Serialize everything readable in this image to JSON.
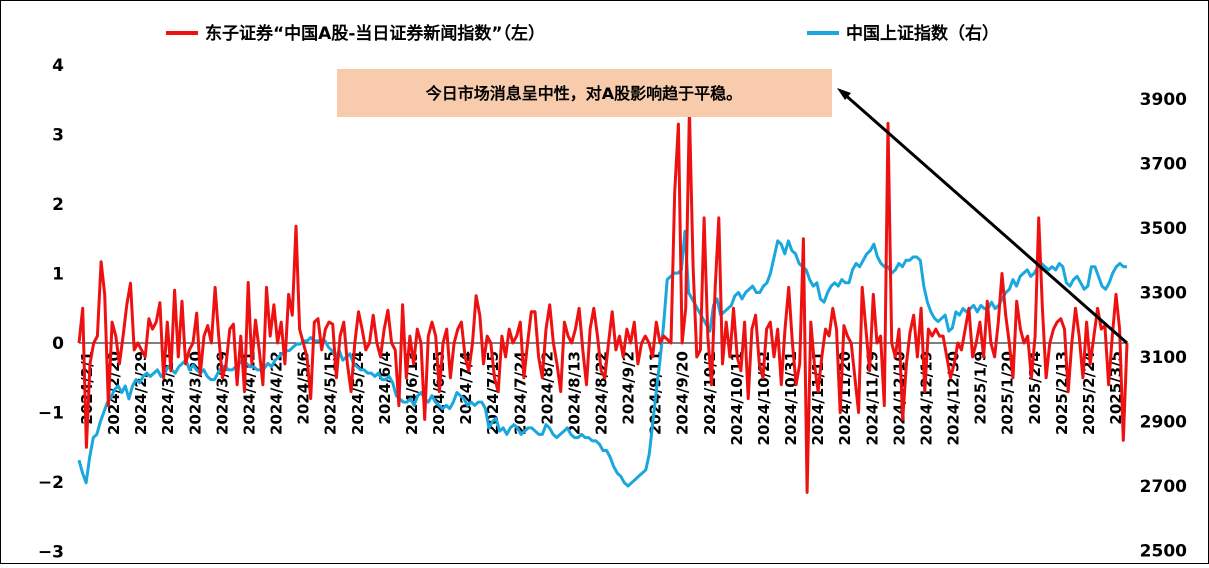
{
  "colors": {
    "series_red": "#ee1111",
    "series_blue": "#1aa7dd",
    "annotation_bg": "#f8cbad",
    "arrow": "#000000"
  },
  "chart_data": {
    "type": "line",
    "grid": false,
    "legend_position": "top",
    "y_left": {
      "ticks": [
        4,
        3,
        2,
        1,
        0,
        -1,
        -2,
        -3
      ],
      "tick_labels": [
        "4",
        "3",
        "2",
        "1",
        "0",
        "−1",
        "−2",
        "−3"
      ],
      "range": [
        -3,
        4
      ]
    },
    "y_right": {
      "ticks": [
        3900,
        3700,
        3500,
        3300,
        3100,
        2900,
        2700,
        2500
      ],
      "range": [
        2500,
        3950
      ]
    },
    "x_start": "2024/2/1",
    "x_end": "2025/3/10",
    "x_tick_labels": [
      "2024/2/1",
      "2024/2/20",
      "2024/2/29",
      "2024/3/11",
      "2024/3/20",
      "2024/3/29",
      "2024/4/11",
      "2024/4/22",
      "2024/5/6",
      "2024/5/15",
      "2024/5/24",
      "2024/6/4",
      "2024/6/13",
      "2024/6/25",
      "2024/7/4",
      "2024/7/15",
      "2024/7/24",
      "2024/8/2",
      "2024/8/13",
      "2024/8/22",
      "2024/9/2",
      "2024/9/11",
      "2024/9/20",
      "2024/10/2",
      "2024/10/11",
      "2024/10/22",
      "2024/10/31",
      "2024/11/11",
      "2024/11/20",
      "2024/11/29",
      "2024/12/10",
      "2024/12/19",
      "2024/12/30",
      "2025/1/9",
      "2025/1/20",
      "2025/2/4",
      "2025/2/13",
      "2025/2/24",
      "2025/3/5"
    ],
    "series": [
      {
        "name": "东子证券“中国A股-当日证券新闻指数”（左）",
        "axis": "left",
        "values": [
          0.0,
          0.5,
          -1.5,
          -0.3,
          0.0,
          0.1,
          1.17,
          0.7,
          -0.9,
          0.3,
          0.1,
          -0.3,
          0.1,
          0.55,
          0.86,
          -0.1,
          0.0,
          -0.1,
          -0.2,
          0.35,
          0.2,
          0.3,
          0.58,
          -0.5,
          0.3,
          -0.4,
          0.76,
          -0.2,
          0.6,
          -0.3,
          -0.1,
          0.0,
          0.43,
          -0.45,
          0.1,
          0.25,
          0.0,
          0.8,
          0.1,
          -0.5,
          -0.3,
          0.2,
          0.27,
          -0.6,
          0.1,
          -0.7,
          0.87,
          -0.3,
          0.33,
          -0.1,
          -0.6,
          0.8,
          0.1,
          0.55,
          0.0,
          0.3,
          -0.3,
          0.7,
          0.4,
          1.68,
          0.2,
          0.0,
          -0.2,
          -0.8,
          0.3,
          0.35,
          -0.1,
          0.2,
          0.3,
          0.27,
          -0.5,
          0.1,
          0.3,
          -0.3,
          -0.7,
          0.0,
          0.45,
          0.2,
          -0.1,
          0.0,
          0.4,
          0.0,
          -0.2,
          0.2,
          0.47,
          0.0,
          -0.1,
          -0.9,
          0.55,
          -0.5,
          0.1,
          -0.3,
          0.2,
          0.0,
          -1.1,
          0.1,
          0.3,
          0.1,
          -0.7,
          0.0,
          0.2,
          -0.5,
          0.0,
          0.2,
          0.3,
          -0.2,
          -0.4,
          0.0,
          0.68,
          0.4,
          -0.3,
          0.1,
          0.0,
          -0.5,
          -0.7,
          0.1,
          -0.2,
          0.2,
          0.0,
          0.1,
          0.3,
          -0.5,
          0.0,
          0.45,
          0.45,
          -0.2,
          -0.5,
          0.2,
          0.55,
          0.0,
          -0.3,
          -0.7,
          0.3,
          0.1,
          0.0,
          0.2,
          0.5,
          -0.1,
          -0.6,
          0.2,
          0.5,
          0.1,
          -0.4,
          -0.5,
          0.0,
          0.45,
          -0.1,
          0.1,
          -0.2,
          0.2,
          0.0,
          0.3,
          -0.3,
          0.0,
          0.1,
          0.0,
          -0.2,
          0.3,
          0.0,
          0.1,
          0.05,
          0.0,
          2.17,
          3.15,
          0.0,
          0.5,
          3.35,
          1.1,
          -0.2,
          -0.1,
          1.8,
          0.1,
          -0.6,
          0.8,
          1.8,
          -0.3,
          0.3,
          -0.2,
          0.5,
          -0.2,
          -0.4,
          0.3,
          -0.8,
          0.2,
          0.4,
          -0.3,
          -0.5,
          0.2,
          0.3,
          -0.2,
          0.2,
          -0.6,
          0.2,
          0.8,
          0.0,
          -0.6,
          -0.3,
          1.5,
          -2.15,
          0.3,
          -0.3,
          -0.7,
          -0.2,
          0.2,
          0.1,
          0.5,
          0.2,
          -1.0,
          0.25,
          0.1,
          0.0,
          -0.5,
          -1.0,
          0.8,
          0.2,
          -0.4,
          0.7,
          0.0,
          0.1,
          -0.9,
          3.16,
          0.0,
          -0.2,
          0.2,
          -1.1,
          -0.3,
          0.15,
          0.4,
          -0.2,
          0.5,
          -0.7,
          0.2,
          0.1,
          0.2,
          0.1,
          0.1,
          -0.2,
          -0.5,
          -0.3,
          0.0,
          -0.1,
          0.2,
          0.5,
          -0.2,
          0.0,
          0.3,
          -0.2,
          0.6,
          0.0,
          -0.2,
          0.3,
          1.0,
          0.4,
          0.0,
          -0.5,
          0.6,
          0.2,
          0.0,
          0.1,
          -0.5,
          0.1,
          1.8,
          0.5,
          -0.5,
          0.0,
          0.2,
          0.3,
          0.35,
          0.2,
          -0.7,
          0.0,
          0.5,
          0.1,
          -0.5,
          0.3,
          -0.3,
          0.1,
          0.5,
          0.2,
          0.25,
          -0.6,
          0.1,
          0.7,
          0.2,
          -1.4,
          0.0
        ]
      },
      {
        "name": "中国上证指数（右）",
        "axis": "right",
        "values": [
          2780,
          2740,
          2710,
          2790,
          2850,
          2860,
          2900,
          2930,
          2960,
          2975,
          3000,
          3010,
          2990,
          3010,
          2970,
          3010,
          3030,
          3020,
          3040,
          3050,
          3040,
          3050,
          3060,
          3040,
          3050,
          3070,
          3060,
          3050,
          3070,
          3080,
          3090,
          3060,
          3075,
          3060,
          3050,
          3060,
          3040,
          3030,
          3030,
          3050,
          3070,
          3070,
          3060,
          3060,
          3070,
          3080,
          3090,
          3080,
          3070,
          3070,
          3060,
          3060,
          3065,
          3080,
          3070,
          3090,
          3100,
          3110,
          3120,
          3120,
          3130,
          3140,
          3140,
          3150,
          3150,
          3160,
          3150,
          3150,
          3150,
          3150,
          3130,
          3120,
          3100,
          3120,
          3090,
          3100,
          3110,
          3080,
          3070,
          3060,
          3060,
          3050,
          3050,
          3040,
          3050,
          3030,
          3030,
          3040,
          3020,
          2980,
          2970,
          2960,
          2960,
          2970,
          2950,
          2980,
          2990,
          2970,
          2960,
          2980,
          2960,
          2950,
          2940,
          2950,
          2940,
          2960,
          2990,
          2980,
          2970,
          2950,
          2960,
          2950,
          2960,
          2960,
          2940,
          2880,
          2900,
          2910,
          2870,
          2880,
          2860,
          2880,
          2890,
          2880,
          2860,
          2870,
          2880,
          2880,
          2870,
          2860,
          2860,
          2890,
          2880,
          2860,
          2850,
          2860,
          2870,
          2880,
          2860,
          2850,
          2850,
          2860,
          2850,
          2850,
          2840,
          2840,
          2830,
          2810,
          2810,
          2790,
          2760,
          2740,
          2730,
          2710,
          2700,
          2710,
          2720,
          2730,
          2740,
          2750,
          2800,
          2900,
          3000,
          3090,
          3200,
          3340,
          3350,
          3360,
          3360,
          3370,
          3490,
          3300,
          3280,
          3260,
          3240,
          3220,
          3200,
          3180,
          3260,
          3280,
          3230,
          3240,
          3250,
          3260,
          3290,
          3300,
          3280,
          3300,
          3310,
          3320,
          3300,
          3300,
          3320,
          3330,
          3360,
          3410,
          3460,
          3450,
          3420,
          3460,
          3430,
          3420,
          3390,
          3380,
          3370,
          3340,
          3320,
          3330,
          3280,
          3270,
          3300,
          3320,
          3330,
          3320,
          3340,
          3330,
          3330,
          3370,
          3390,
          3380,
          3400,
          3420,
          3430,
          3450,
          3410,
          3390,
          3380,
          3380,
          3360,
          3370,
          3390,
          3380,
          3400,
          3400,
          3410,
          3410,
          3400,
          3320,
          3270,
          3240,
          3220,
          3210,
          3220,
          3230,
          3180,
          3190,
          3240,
          3230,
          3250,
          3240,
          3250,
          3260,
          3240,
          3260,
          3250,
          3250,
          3270,
          3250,
          3260,
          3280,
          3300,
          3310,
          3340,
          3320,
          3350,
          3360,
          3370,
          3350,
          3360,
          3380,
          3390,
          3380,
          3370,
          3380,
          3370,
          3390,
          3380,
          3330,
          3320,
          3340,
          3350,
          3330,
          3310,
          3320,
          3380,
          3380,
          3350,
          3320,
          3310,
          3330,
          3360,
          3380,
          3390,
          3380,
          3380
        ]
      }
    ]
  },
  "annotation": {
    "text": "今日市场消息呈中性，对A股影响趋于平稳。"
  }
}
